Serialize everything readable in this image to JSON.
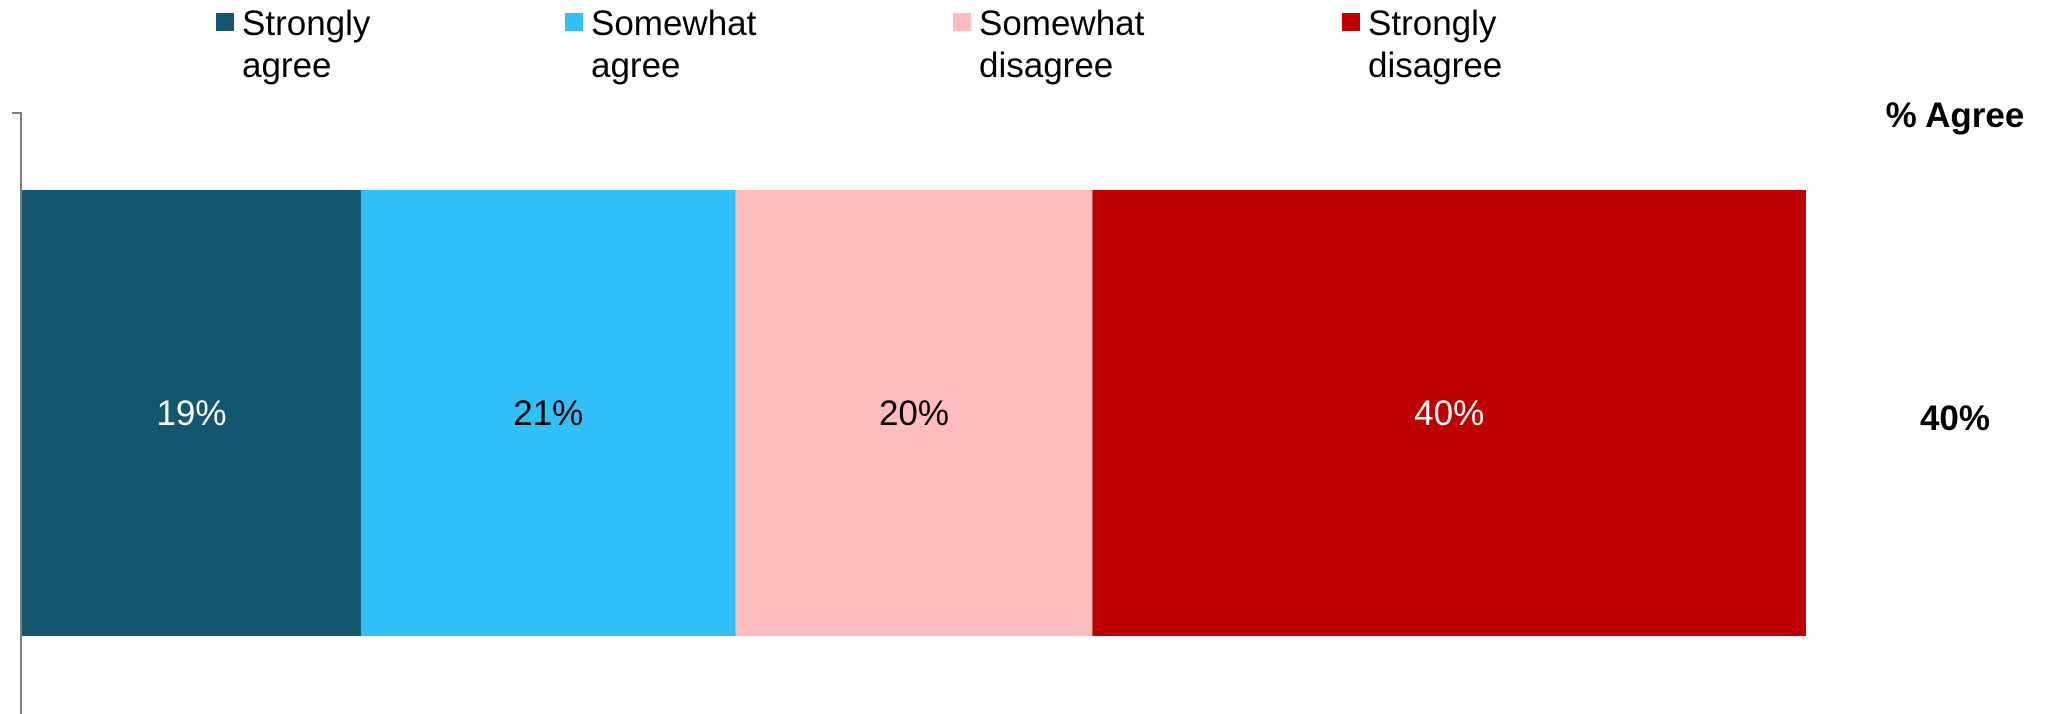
{
  "chart_data": {
    "type": "bar",
    "orientation": "horizontal",
    "stacked": true,
    "categories": [
      ""
    ],
    "series": [
      {
        "name": "Strongly agree",
        "values": [
          19
        ],
        "color": "#12566f",
        "label": "19%",
        "label_color": "#ffffff"
      },
      {
        "name": "Somewhat agree",
        "values": [
          21
        ],
        "color": "#30c1f8",
        "label": "21%",
        "label_color": "#000000"
      },
      {
        "name": "Somewhat disagree",
        "values": [
          20
        ],
        "color": "#ffbcbd",
        "label": "20%",
        "label_color": "#000000"
      },
      {
        "name": "Strongly disagree",
        "values": [
          40
        ],
        "color": "#c00000",
        "label": "40%",
        "label_color": "#ffffff"
      }
    ],
    "legend": {
      "position": "top",
      "items": [
        {
          "line1": "Strongly",
          "line2": "agree",
          "color": "#12566f"
        },
        {
          "line1": "Somewhat",
          "line2": "agree",
          "color": "#30c1f8"
        },
        {
          "line1": "Somewhat",
          "line2": "disagree",
          "color": "#ffbcbd"
        },
        {
          "line1": "Strongly",
          "line2": "disagree",
          "color": "#c00000"
        }
      ]
    },
    "side_column": {
      "header": "% Agree",
      "values": [
        "40%"
      ]
    },
    "xlim": [
      0,
      100
    ],
    "grid": false
  }
}
